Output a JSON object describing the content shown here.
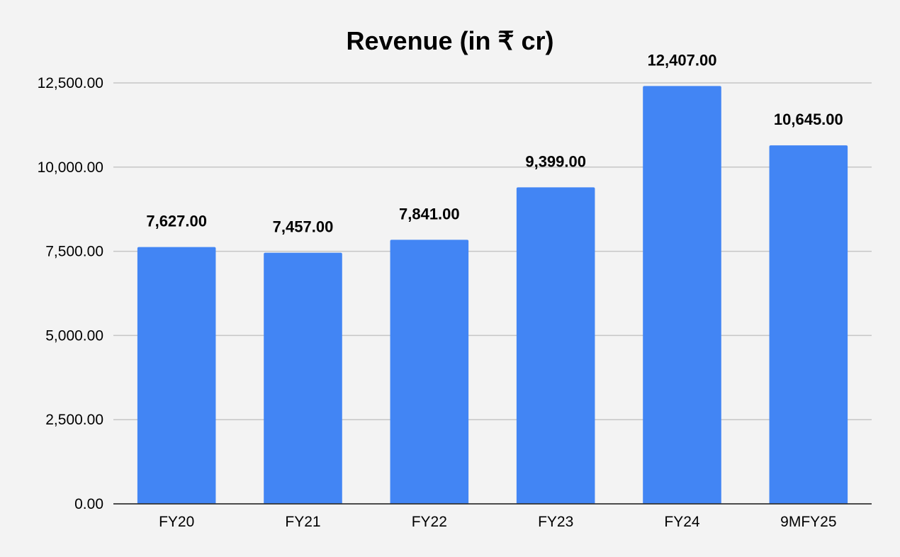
{
  "chart_data": {
    "type": "bar",
    "title": "Revenue (in ₹ cr)",
    "categories": [
      "FY20",
      "FY21",
      "FY22",
      "FY23",
      "FY24",
      "9MFY25"
    ],
    "series": [
      {
        "values": [
          7627,
          7457,
          7841,
          9399,
          12407,
          10645
        ],
        "data_labels": [
          "7,627.00",
          "7,457.00",
          "7,841.00",
          "9,399.00",
          "12,407.00",
          "10,645.00"
        ]
      }
    ],
    "y_ticks": [
      0,
      2500,
      5000,
      7500,
      10000,
      12500
    ],
    "y_tick_labels": [
      "0.00",
      "2,500.00",
      "5,000.00",
      "7,500.00",
      "10,000.00",
      "12,500.00"
    ],
    "ylim": [
      0,
      12500
    ],
    "xlabel": "",
    "ylabel": "",
    "grid": true,
    "legend": "none",
    "colors": {
      "bar": "#4285f4",
      "grid": "#c6c6c6",
      "axis": "#333333",
      "background": "#f3f3f3",
      "text": "#000000"
    }
  }
}
